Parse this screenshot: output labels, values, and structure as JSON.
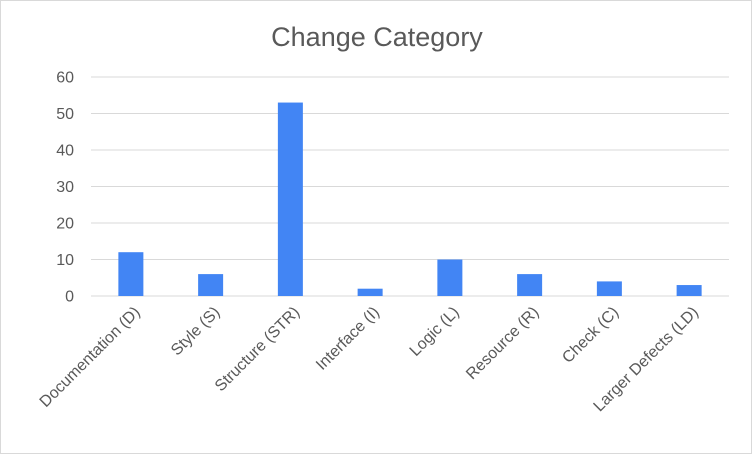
{
  "chart_data": {
    "type": "bar",
    "title": "Change Category",
    "xlabel": "",
    "ylabel": "",
    "categories": [
      "Documentation (D)",
      "Style (S)",
      "Structure (STR)",
      "Interface (I)",
      "Logic (L)",
      "Resource (R)",
      "Check (C)",
      "Larger Defects (LD)"
    ],
    "values": [
      12,
      6,
      53,
      2,
      10,
      6,
      4,
      3
    ],
    "ylim": [
      0,
      60
    ],
    "yticks": [
      "0",
      "10",
      "20",
      "30",
      "40",
      "50",
      "60"
    ],
    "grid": true,
    "legend": "none",
    "bar_color": "#4285f4"
  }
}
